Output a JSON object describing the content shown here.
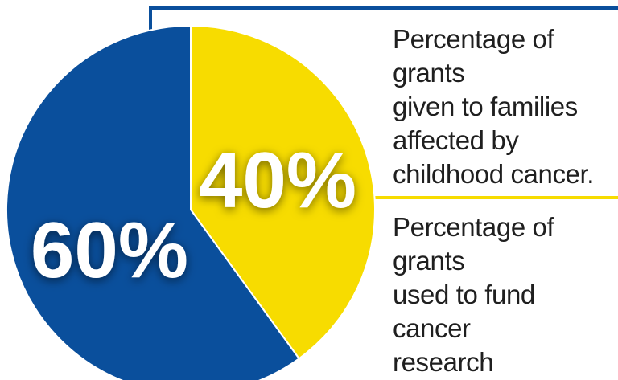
{
  "chart_data": {
    "type": "pie",
    "slices": [
      {
        "label": "60%",
        "value": 60,
        "color": "#0a4f9c",
        "description": "Percentage of grants\nused to fund cancer\nresearch"
      },
      {
        "label": "40%",
        "value": 40,
        "color": "#f7dc00",
        "description": "Percentage of grants\ngiven to families\naffected by\nchildhood cancer."
      }
    ],
    "leader_colors": {
      "families": "#0a4f9c",
      "research": "#f7dc00"
    }
  }
}
